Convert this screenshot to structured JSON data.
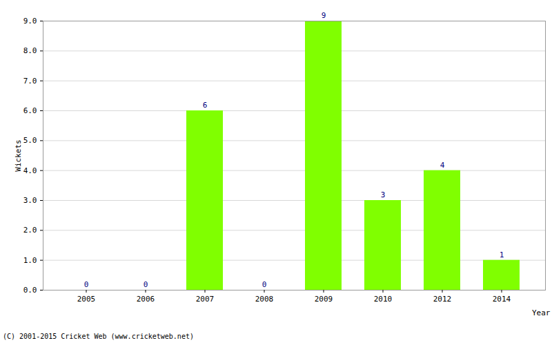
{
  "chart_data": {
    "type": "bar",
    "categories": [
      "2005",
      "2006",
      "2007",
      "2008",
      "2009",
      "2010",
      "2012",
      "2014"
    ],
    "values": [
      0,
      0,
      6,
      0,
      9,
      3,
      4,
      1
    ],
    "color": "#80ff00",
    "y_label": "Wickets",
    "x_label": "Year",
    "caption": "(C) 2001-2015 Cricket Web (www.cricketweb.net)",
    "ylim": [
      0,
      9
    ],
    "yticks": [
      {
        "value": 0,
        "label": "0.0"
      },
      {
        "value": 1,
        "label": "1.0"
      },
      {
        "value": 2,
        "label": "2.0"
      },
      {
        "value": 3,
        "label": "3.0"
      },
      {
        "value": 4,
        "label": "4.0"
      },
      {
        "value": 5,
        "label": "5.0"
      },
      {
        "value": 6,
        "label": "6.0"
      },
      {
        "value": 7,
        "label": "7.0"
      },
      {
        "value": 8,
        "label": "8.0"
      },
      {
        "value": 9,
        "label": "9.0"
      }
    ],
    "grid": true,
    "data_labels": true
  }
}
